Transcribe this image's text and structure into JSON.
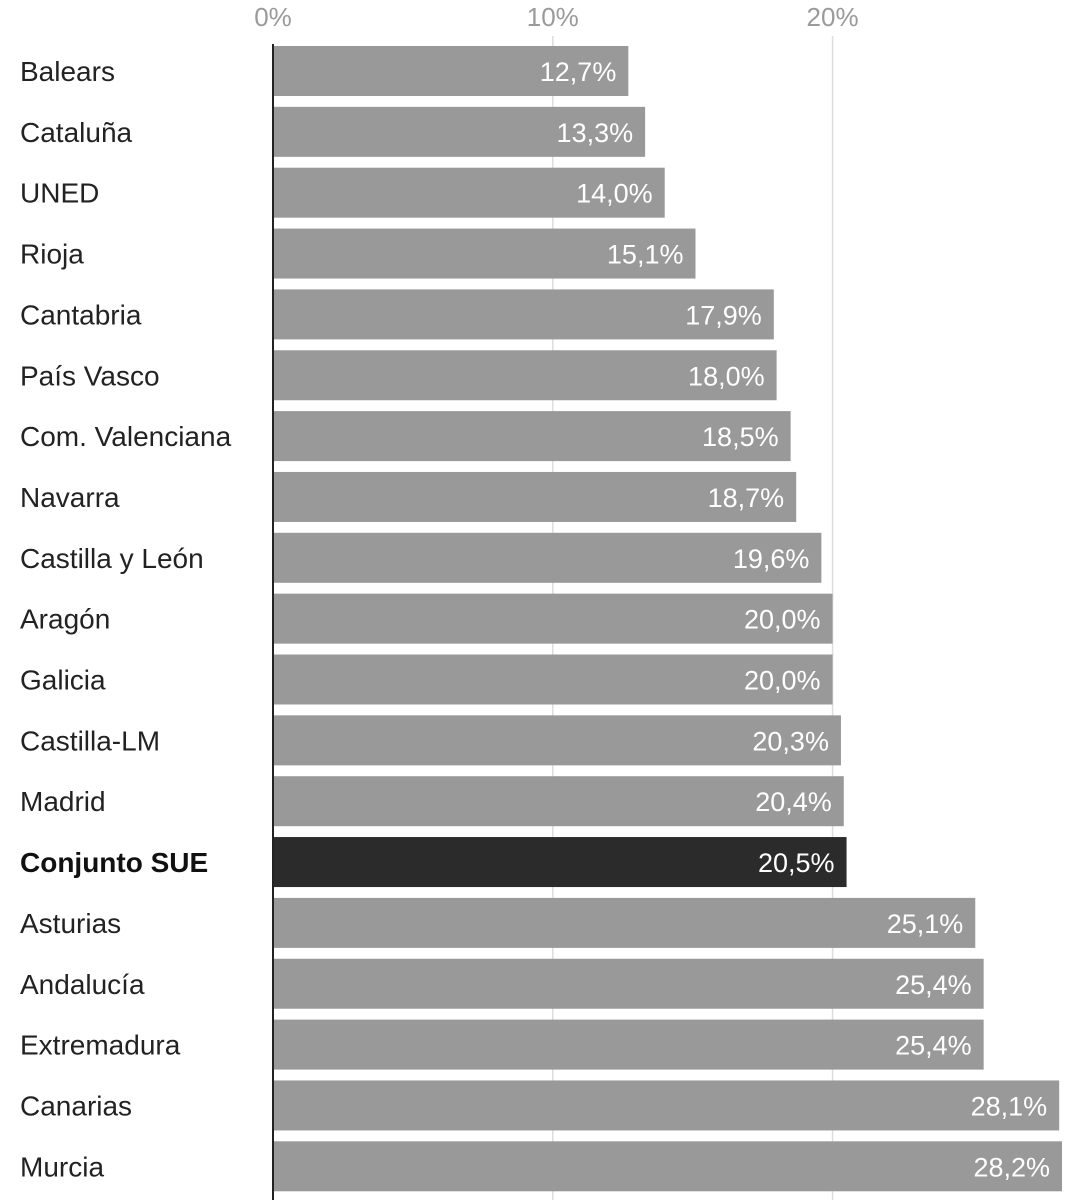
{
  "chart_data": {
    "type": "bar",
    "orientation": "horizontal",
    "xlim": [
      0,
      28.2
    ],
    "ticks": [
      {
        "value": 0,
        "label": "0%"
      },
      {
        "value": 10,
        "label": "10%"
      },
      {
        "value": 20,
        "label": "20%"
      }
    ],
    "grid": true,
    "colors": {
      "bar": "#999999",
      "highlight": "#2b2b2b",
      "grid": "#dddddd",
      "axis": "#222222"
    },
    "categories": [
      "Balears",
      "Cataluña",
      "UNED",
      "Rioja",
      "Cantabria",
      "País Vasco",
      "Com. Valenciana",
      "Navarra",
      "Castilla y León",
      "Aragón",
      "Galicia",
      "Castilla-LM",
      "Madrid",
      "Conjunto SUE",
      "Asturias",
      "Andalucía",
      "Extremadura",
      "Canarias",
      "Murcia"
    ],
    "values": [
      12.7,
      13.3,
      14.0,
      15.1,
      17.9,
      18.0,
      18.5,
      18.7,
      19.6,
      20.0,
      20.0,
      20.3,
      20.4,
      20.5,
      25.1,
      25.4,
      25.4,
      28.1,
      28.2
    ],
    "value_labels": [
      "12,7%",
      "13,3%",
      "14,0%",
      "15,1%",
      "17,9%",
      "18,0%",
      "18,5%",
      "18,7%",
      "19,6%",
      "20,0%",
      "20,0%",
      "20,3%",
      "20,4%",
      "20,5%",
      "25,1%",
      "25,4%",
      "25,4%",
      "28,1%",
      "28,2%"
    ],
    "highlight": [
      "Conjunto SUE"
    ]
  }
}
